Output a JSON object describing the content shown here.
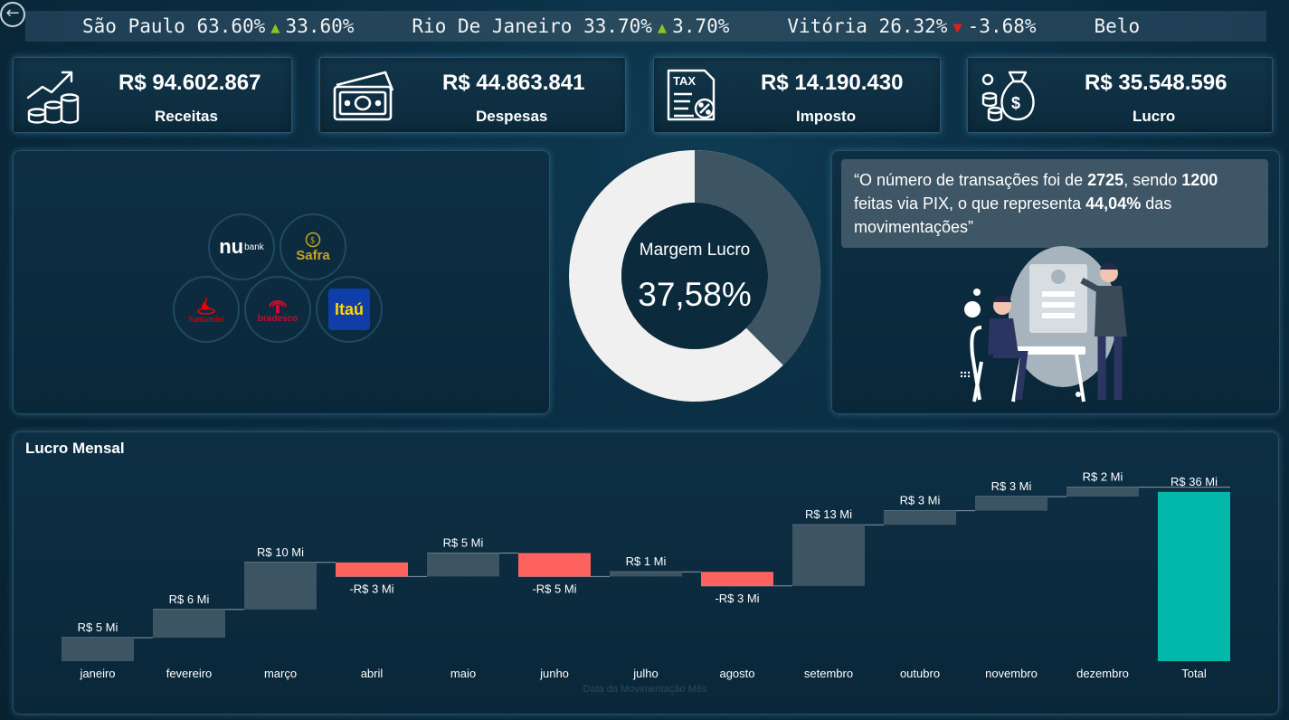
{
  "nav": {
    "back_icon": "back-arrow-icon",
    "back_glyph": "←"
  },
  "ticker": [
    {
      "city": "São Paulo",
      "value": "63.60%",
      "direction": "up",
      "change": "33.60%"
    },
    {
      "city": "Rio De Janeiro",
      "value": "33.70%",
      "direction": "up",
      "change": "3.70%"
    },
    {
      "city": "Vitória",
      "value": "26.32%",
      "direction": "down",
      "change": "-3.68%"
    },
    {
      "city": "Belo",
      "value": "",
      "direction": "",
      "change": ""
    }
  ],
  "kpis": [
    {
      "value": "R$ 94.602.867",
      "label": "Receitas",
      "icon": "revenue-growth-icon"
    },
    {
      "value": "R$ 44.863.841",
      "label": "Despesas",
      "icon": "cash-bill-icon"
    },
    {
      "value": "R$ 14.190.430",
      "label": "Imposto",
      "icon": "tax-document-icon"
    },
    {
      "value": "R$ 35.548.596",
      "label": "Lucro",
      "icon": "money-bag-icon"
    }
  ],
  "banks": [
    {
      "name": "Nubank",
      "logo_main": "nu",
      "logo_sub": "bank",
      "color": "#ffffff"
    },
    {
      "name": "Safra",
      "logo_main": "Safra",
      "color": "#c9a227"
    },
    {
      "name": "Santander",
      "logo_main": "Santander",
      "color": "#ec0000"
    },
    {
      "name": "Bradesco",
      "logo_main": "bradesco",
      "color": "#cc092f"
    },
    {
      "name": "Itaú",
      "logo_main": "Itaú",
      "color": "#ec7000"
    }
  ],
  "donut": {
    "label": "Margem Lucro",
    "value_text": "37,58%",
    "value": 37.58,
    "color_filled": "#3d5463",
    "color_rest": "#f0f0f0"
  },
  "insight": {
    "t1": "“O número de transações foi de ",
    "b1": "2725",
    "t2": ", sendo ",
    "b2": "1200",
    "t3": " feitas via PIX, o que representa ",
    "b3": "44,04%",
    "t4": " das movimentações”"
  },
  "chart_data": {
    "type": "waterfall",
    "title": "Lucro Mensal",
    "xlabel": "Data da Movimentação Mês",
    "categories": [
      "janeiro",
      "fevereiro",
      "março",
      "abril",
      "maio",
      "junho",
      "julho",
      "agosto",
      "setembro",
      "outubro",
      "novembro",
      "dezembro",
      "Total"
    ],
    "values": [
      5,
      6,
      10,
      -3,
      5,
      -5,
      1,
      -3,
      13,
      3,
      3,
      2,
      36
    ],
    "labels": [
      "R$ 5 Mi",
      "R$ 6 Mi",
      "R$ 10 Mi",
      "-R$ 3 Mi",
      "R$ 5 Mi",
      "-R$ 5 Mi",
      "R$ 1 Mi",
      "-R$ 3 Mi",
      "R$ 13 Mi",
      "R$ 3 Mi",
      "R$ 3 Mi",
      "R$ 2 Mi",
      "R$ 36 Mi"
    ],
    "unit": "R$ Mi",
    "colors": {
      "increase": "#3d5463",
      "decrease": "#fd625e",
      "total": "#01b8aa"
    }
  }
}
